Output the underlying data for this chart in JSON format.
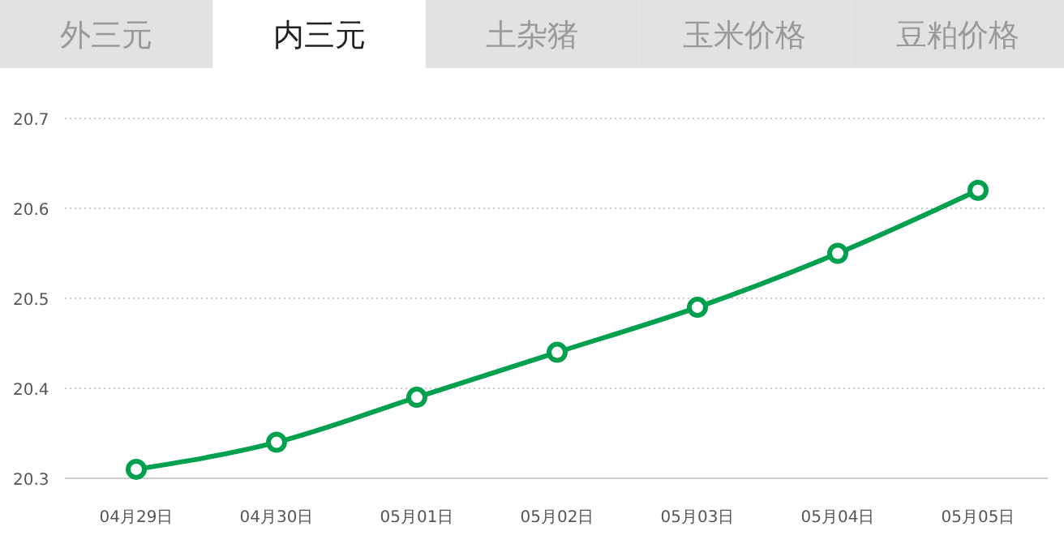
{
  "chart_data": {
    "type": "line",
    "annotations": [
      "外三元",
      "内三元",
      "土杂猪",
      "玉米价格",
      "豆粕价格"
    ],
    "categories": [
      "04月29日",
      "04月30日",
      "05月01日",
      "05月02日",
      "05月03日",
      "05月04日",
      "05月05日"
    ],
    "series": [
      {
        "color": "#00a04e",
        "values": [
          20.31,
          20.34,
          20.39,
          20.44,
          20.49,
          20.55,
          20.62
        ]
      }
    ],
    "ylim": [
      20.3,
      20.7
    ],
    "yticks": [
      20.3,
      20.4,
      20.5,
      20.6,
      20.7
    ],
    "grid": "y",
    "marker": "circle",
    "line_style": "solid"
  }
}
